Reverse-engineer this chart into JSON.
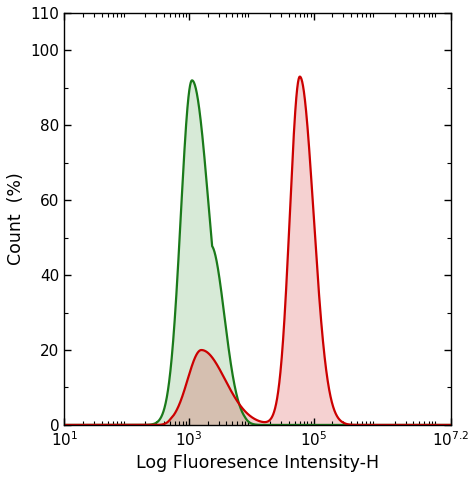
{
  "xlabel": "Log Fluoresence Intensity-H",
  "ylabel": "Count  (%)",
  "xlim_log": [
    1,
    7.2
  ],
  "ylim": [
    0,
    110
  ],
  "yticks": [
    0,
    20,
    40,
    60,
    80,
    100,
    110
  ],
  "ytick_labels": [
    "0",
    "20",
    "40",
    "60",
    "80",
    "100",
    "110"
  ],
  "xtick_positions": [
    1,
    3,
    5,
    7.2
  ],
  "xtick_labels": [
    "$10^1$",
    "$10^3$",
    "$10^5$",
    "$10^{7.2}$"
  ],
  "green_color": "#1a7a1a",
  "green_fill": "#228B22",
  "red_color": "#cc0000",
  "red_fill": "#cc0000",
  "background_color": "#ffffff"
}
